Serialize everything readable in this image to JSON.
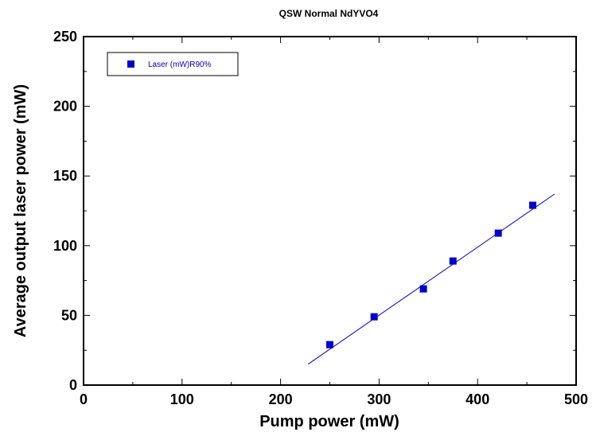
{
  "chart_data": {
    "type": "scatter",
    "title": "QSW Normal NdYVO4",
    "xlabel": "Pump power (mW)",
    "ylabel": "Average output laser power  (mW)",
    "xlim": [
      0,
      500
    ],
    "ylim": [
      0,
      250
    ],
    "x_ticks": [
      0,
      100,
      200,
      300,
      400,
      500
    ],
    "y_ticks": [
      0,
      50,
      100,
      150,
      200,
      250
    ],
    "grid": false,
    "legend_position": "top-left",
    "series": [
      {
        "name": "Laser (mW)R90%",
        "color": "#0000cc",
        "marker": "square",
        "x": [
          250,
          295,
          345,
          375,
          421,
          456
        ],
        "y": [
          29,
          49,
          69,
          89,
          109,
          129
        ]
      }
    ],
    "fit_line": {
      "color": "#0000cc",
      "x": [
        228,
        478
      ],
      "y": [
        15,
        137
      ]
    }
  }
}
